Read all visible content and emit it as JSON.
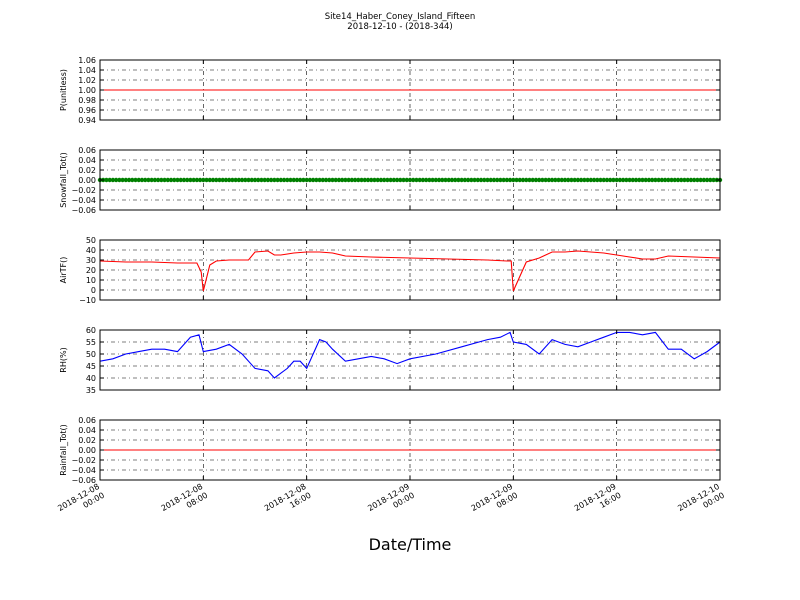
{
  "title": "Site14_Haber_Coney_Island_Fifteen",
  "subtitle": "2018-12-10 - (2018-344)",
  "xlabel": "Date/Time",
  "x_ticks": [
    {
      "value": "2018-12-08T00:00",
      "date": "2018-12-08",
      "time": "00:00"
    },
    {
      "value": "2018-12-08T08:00",
      "date": "2018-12-08",
      "time": "08:00"
    },
    {
      "value": "2018-12-08T16:00",
      "date": "2018-12-08",
      "time": "16:00"
    },
    {
      "value": "2018-12-09T00:00",
      "date": "2018-12-09",
      "time": "00:00"
    },
    {
      "value": "2018-12-09T08:00",
      "date": "2018-12-09",
      "time": "08:00"
    },
    {
      "value": "2018-12-09T16:00",
      "date": "2018-12-09",
      "time": "16:00"
    },
    {
      "value": "2018-12-10T00:00",
      "date": "2018-12-10",
      "time": "00:00"
    }
  ],
  "chart_data": [
    {
      "type": "line",
      "ylabel": "P(unitless)",
      "ylim": [
        0.94,
        1.06
      ],
      "yticks": [
        "0.94",
        "0.96",
        "0.98",
        "1.00",
        "1.02",
        "1.04",
        "1.06"
      ],
      "grid": true,
      "color": "#ff0000",
      "x": [
        "2018-12-08T00:00",
        "2018-12-10T00:00"
      ],
      "y": [
        1.0,
        1.0
      ]
    },
    {
      "type": "scatter",
      "ylabel": "Snowfall_Tot()",
      "ylim": [
        -0.06,
        0.06
      ],
      "yticks": [
        "−0.06",
        "−0.04",
        "−0.02",
        "0.00",
        "0.02",
        "0.04",
        "0.06"
      ],
      "grid": true,
      "color": "#008000",
      "marker_interval_minutes": 15,
      "y_constant": 0.0
    },
    {
      "type": "line",
      "ylabel": "AirTF()",
      "ylim": [
        -10,
        50
      ],
      "yticks": [
        "−10",
        "0",
        "10",
        "20",
        "30",
        "40",
        "50"
      ],
      "grid": true,
      "color": "#ff0000",
      "x": [
        "2018-12-08T00:00",
        "2018-12-08T02:00",
        "2018-12-08T04:00",
        "2018-12-08T06:00",
        "2018-12-08T07:30",
        "2018-12-08T07:50",
        "2018-12-08T08:00",
        "2018-12-08T08:30",
        "2018-12-08T09:00",
        "2018-12-08T10:00",
        "2018-12-08T11:30",
        "2018-12-08T12:00",
        "2018-12-08T13:00",
        "2018-12-08T13:30",
        "2018-12-08T14:00",
        "2018-12-08T15:00",
        "2018-12-08T16:00",
        "2018-12-08T17:00",
        "2018-12-08T18:00",
        "2018-12-08T19:00",
        "2018-12-08T21:00",
        "2018-12-09T00:00",
        "2018-12-09T03:00",
        "2018-12-09T06:00",
        "2018-12-09T07:30",
        "2018-12-09T07:50",
        "2018-12-09T08:00",
        "2018-12-09T09:00",
        "2018-12-09T10:00",
        "2018-12-09T11:00",
        "2018-12-09T12:00",
        "2018-12-09T13:00",
        "2018-12-09T14:00",
        "2018-12-09T15:00",
        "2018-12-09T16:00",
        "2018-12-09T17:00",
        "2018-12-09T18:00",
        "2018-12-09T19:00",
        "2018-12-09T20:00",
        "2018-12-09T22:00",
        "2018-12-10T00:00"
      ],
      "y": [
        29,
        28,
        28,
        27,
        27,
        18,
        -1,
        25,
        29,
        30,
        30,
        38,
        39,
        35,
        35,
        37,
        38,
        38,
        37,
        34,
        33,
        32,
        31,
        30,
        29,
        29,
        -1,
        28,
        32,
        38,
        38,
        39,
        38,
        37,
        35,
        33,
        31,
        31,
        34,
        33,
        32
      ]
    },
    {
      "type": "line",
      "ylabel": "RH(%)",
      "ylim": [
        35,
        60
      ],
      "yticks": [
        "35",
        "40",
        "45",
        "50",
        "55",
        "60"
      ],
      "grid": true,
      "color": "#0000ff",
      "x": [
        "2018-12-08T00:00",
        "2018-12-08T01:00",
        "2018-12-08T02:00",
        "2018-12-08T03:00",
        "2018-12-08T04:00",
        "2018-12-08T05:00",
        "2018-12-08T06:00",
        "2018-12-08T07:00",
        "2018-12-08T07:40",
        "2018-12-08T08:00",
        "2018-12-08T09:00",
        "2018-12-08T10:00",
        "2018-12-08T11:00",
        "2018-12-08T12:00",
        "2018-12-08T13:00",
        "2018-12-08T13:30",
        "2018-12-08T14:00",
        "2018-12-08T14:30",
        "2018-12-08T15:00",
        "2018-12-08T15:30",
        "2018-12-08T16:00",
        "2018-12-08T17:00",
        "2018-12-08T17:30",
        "2018-12-08T18:00",
        "2018-12-08T19:00",
        "2018-12-08T20:00",
        "2018-12-08T21:00",
        "2018-12-08T22:00",
        "2018-12-08T23:00",
        "2018-12-09T00:00",
        "2018-12-09T02:00",
        "2018-12-09T04:00",
        "2018-12-09T06:00",
        "2018-12-09T07:00",
        "2018-12-09T07:45",
        "2018-12-09T08:00",
        "2018-12-09T09:00",
        "2018-12-09T10:00",
        "2018-12-09T11:00",
        "2018-12-09T12:00",
        "2018-12-09T13:00",
        "2018-12-09T14:00",
        "2018-12-09T15:00",
        "2018-12-09T16:00",
        "2018-12-09T17:00",
        "2018-12-09T18:00",
        "2018-12-09T19:00",
        "2018-12-09T20:00",
        "2018-12-09T21:00",
        "2018-12-09T22:00",
        "2018-12-09T23:00",
        "2018-12-10T00:00"
      ],
      "y": [
        47,
        48,
        50,
        51,
        52,
        52,
        51,
        57,
        58,
        51,
        52,
        54,
        50,
        44,
        43,
        40,
        42,
        44,
        47,
        47,
        44,
        56,
        55,
        52,
        47,
        48,
        49,
        48,
        46,
        48,
        50,
        53,
        56,
        57,
        59,
        55,
        54,
        50,
        56,
        54,
        53,
        55,
        57,
        59,
        59,
        58,
        59,
        52,
        52,
        48,
        51,
        55
      ]
    },
    {
      "type": "line",
      "ylabel": "Rainfall_Tot()",
      "ylim": [
        -0.06,
        0.06
      ],
      "yticks": [
        "−0.06",
        "−0.04",
        "−0.02",
        "0.00",
        "0.02",
        "0.04",
        "0.06"
      ],
      "grid": true,
      "color": "#ff0000",
      "x": [
        "2018-12-08T00:00",
        "2018-12-10T00:00"
      ],
      "y": [
        0.0,
        0.0
      ]
    }
  ]
}
